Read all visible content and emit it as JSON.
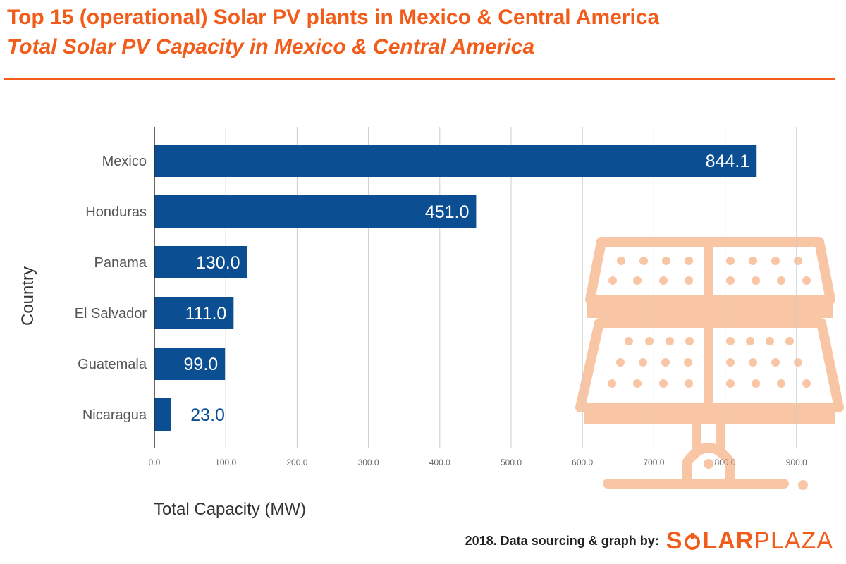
{
  "header": {
    "title": "Top 15 (operational) Solar PV plants in Mexico & Central America",
    "subtitle": "Total Solar PV Capacity in Mexico & Central America"
  },
  "footer": {
    "credit": "2018. Data sourcing & graph by:",
    "brand_part1": "S",
    "brand_part2": "LAR",
    "brand_part3": "PLAZA"
  },
  "colors": {
    "accent": "#f25c1a",
    "bar": "#0b4f92",
    "watermark": "#f9c6a5"
  },
  "decor": {
    "watermark_icon": "solar-panel-icon"
  },
  "chart_data": {
    "type": "bar",
    "orientation": "horizontal",
    "categories": [
      "Mexico",
      "Honduras",
      "Panama",
      "El Salvador",
      "Guatemala",
      "Nicaragua"
    ],
    "values": [
      844.1,
      451.0,
      130.0,
      111.0,
      99.0,
      23.0
    ],
    "value_labels": [
      "844.1",
      "451.0",
      "130.0",
      "111.0",
      "99.0",
      "23.0"
    ],
    "xlabel": "Total Capacity (MW)",
    "ylabel": "Country",
    "xlim": [
      0,
      950
    ],
    "xticks": [
      0,
      100,
      200,
      300,
      400,
      500,
      600,
      700,
      800,
      900
    ],
    "xtick_labels": [
      "0.0",
      "100.0",
      "200.0",
      "300.0",
      "400.0",
      "500.0",
      "600.0",
      "700.0",
      "800.0",
      "900.0"
    ],
    "grid": true,
    "legend": "none"
  }
}
